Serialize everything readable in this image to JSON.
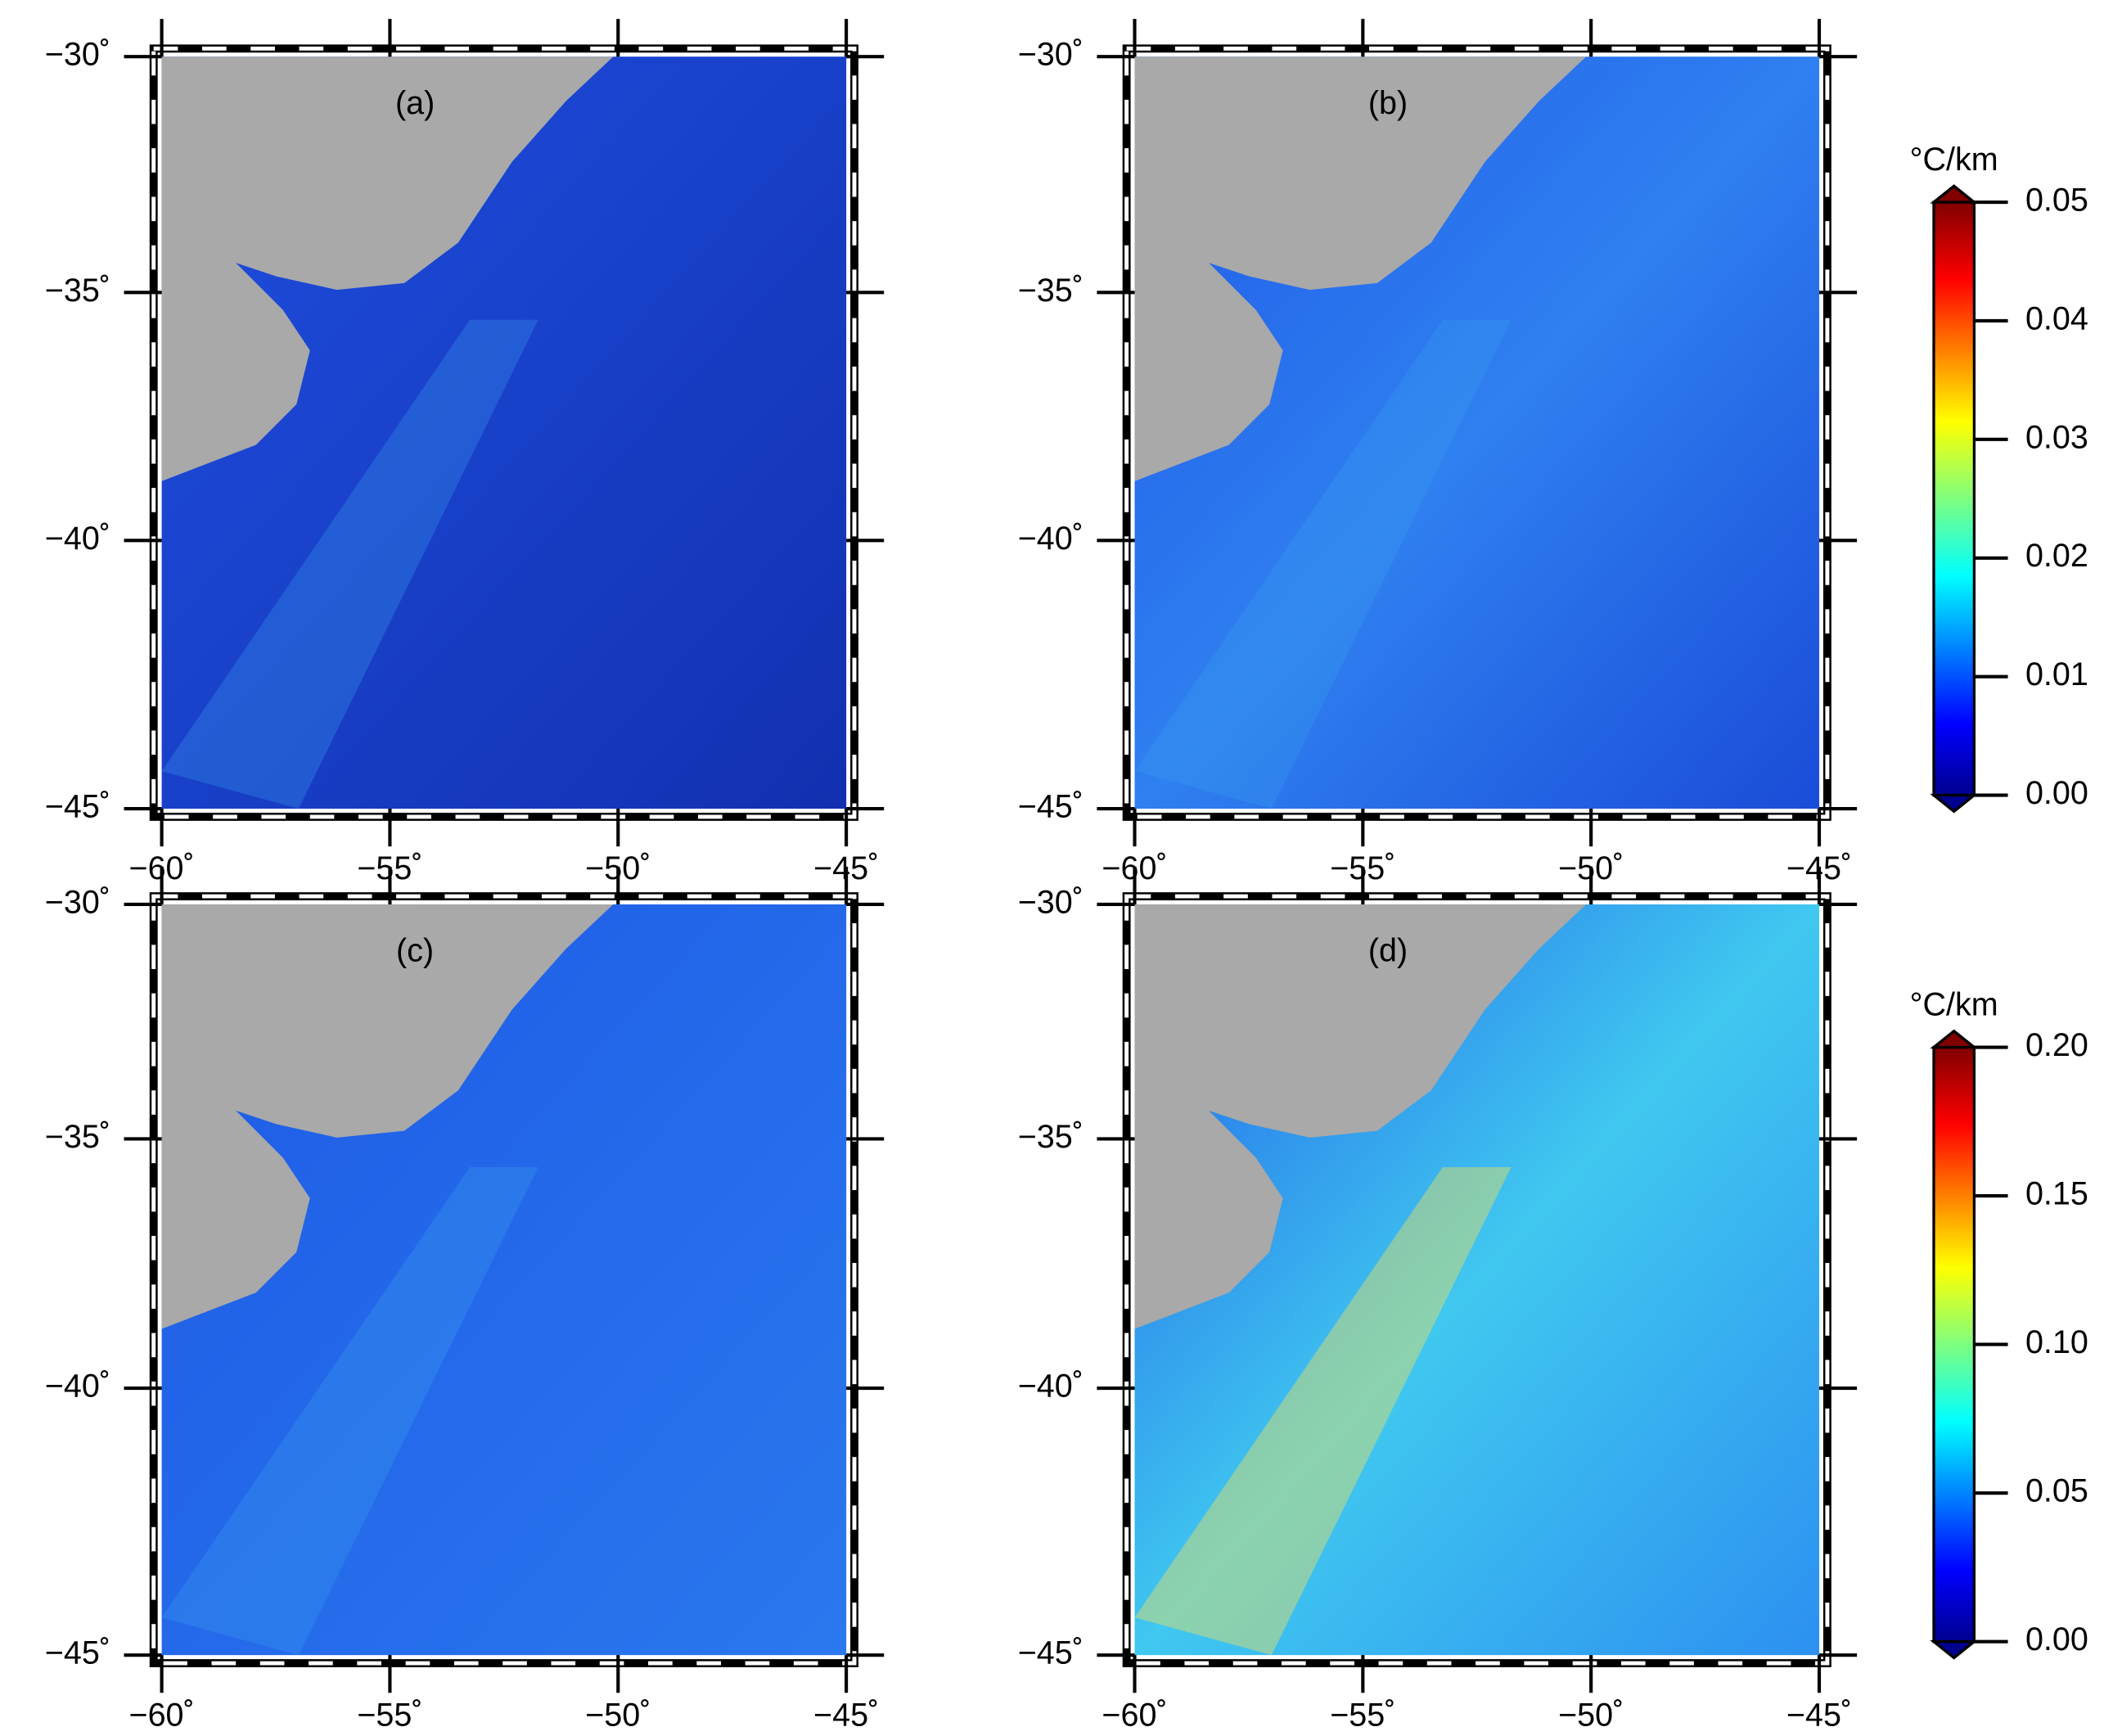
{
  "panels": [
    {
      "label": "(a)"
    },
    {
      "label": "(b)"
    },
    {
      "label": "(c)"
    },
    {
      "label": "(d)"
    }
  ],
  "lat_ticks": [
    "−30˚",
    "−35˚",
    "−40˚",
    "−45˚"
  ],
  "lon_ticks": [
    "−60˚",
    "−55˚",
    "−50˚",
    "−45˚"
  ],
  "colorbars": [
    {
      "unit": "°C/km",
      "ticks": [
        "0.05",
        "0.04",
        "0.03",
        "0.02",
        "0.01",
        "0.00"
      ]
    },
    {
      "unit": "°C/km",
      "ticks": [
        "0.20",
        "0.15",
        "0.10",
        "0.05",
        "0.00"
      ]
    }
  ]
}
